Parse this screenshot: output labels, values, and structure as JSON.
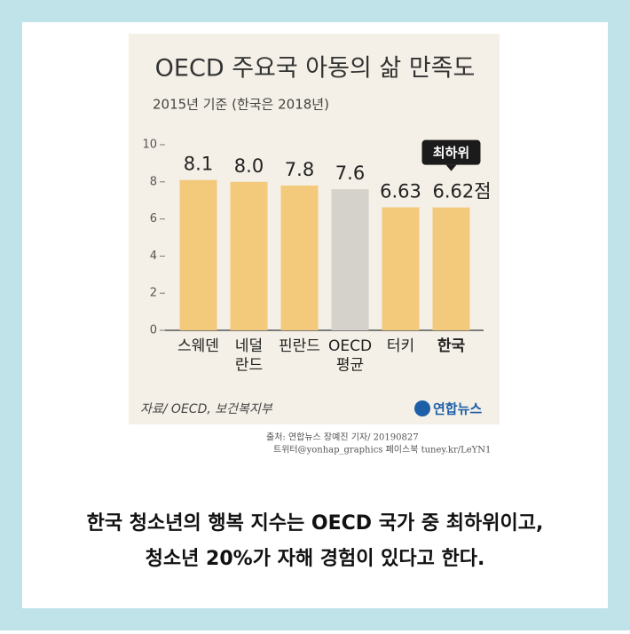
{
  "chart_data": {
    "type": "bar",
    "title": "OECD 주요국 아동의 삶 만족도",
    "subtitle": "2015년 기준 (한국은 2018년)",
    "categories": [
      "스웨덴",
      "네덜\n란드",
      "핀란드",
      "OECD\n평균",
      "터키",
      "한국"
    ],
    "values": [
      8.1,
      8.0,
      7.8,
      7.6,
      6.63,
      6.62
    ],
    "value_labels": [
      "8.1",
      "8.0",
      "7.8",
      "7.6",
      "6.63",
      "6.62점"
    ],
    "colors": [
      "#f3c97c",
      "#f3c97c",
      "#f3c97c",
      "#d5d1cb",
      "#f3c97c",
      "#f3c97c"
    ],
    "ylim": [
      0,
      10
    ],
    "yticks": [
      0,
      2,
      4,
      6,
      8,
      10
    ],
    "annotation": "최하위",
    "source": "자료/ OECD, 보건복지부",
    "logo": "연합뉴스"
  },
  "credit": [
    "출처: 연합뉴스 장예진 기자/ 20190827",
    "트위터@yonhap_graphics  페이스북 tuney.kr/LeYN1"
  ],
  "caption": [
    "한국 청소년의 행복 지수는 OECD 국가 중 최하위이고,",
    "청소년 20%가 자해 경험이 있다고 한다."
  ]
}
